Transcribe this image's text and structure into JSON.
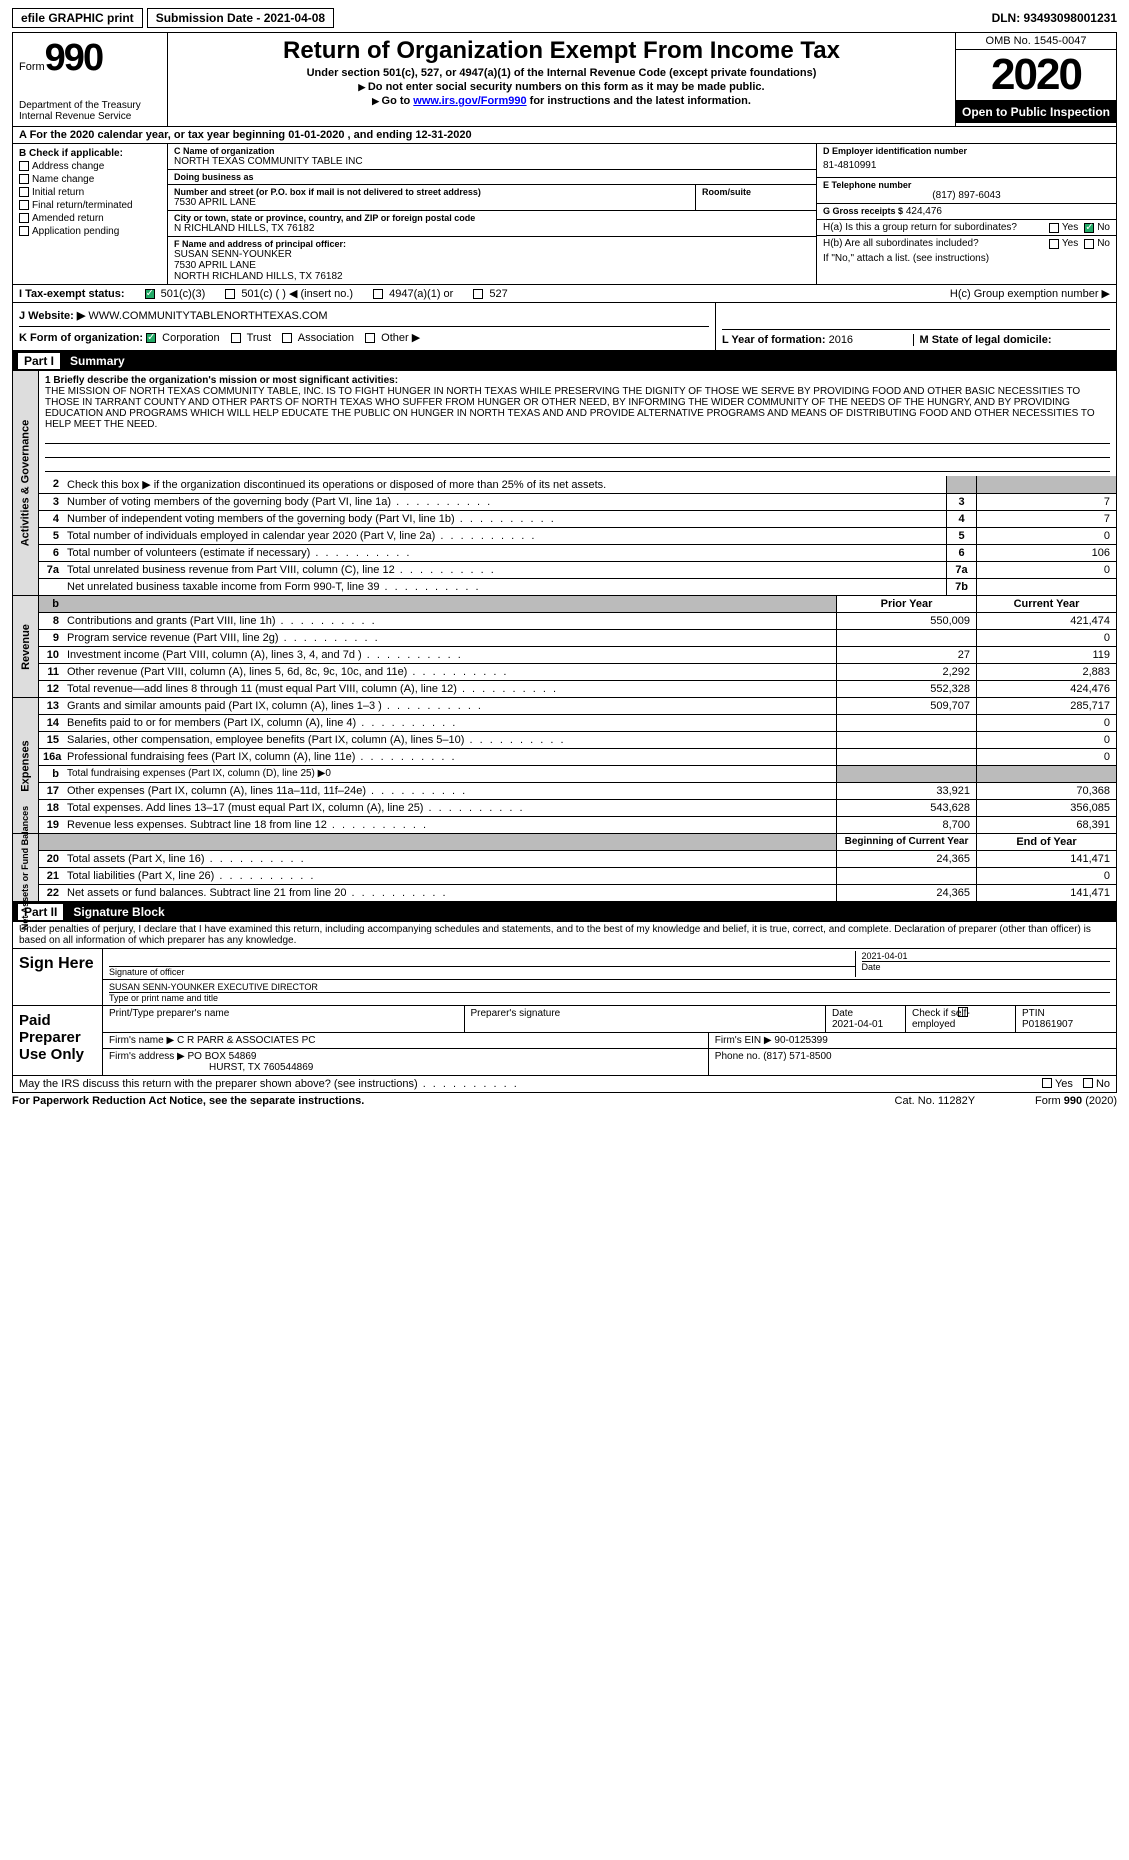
{
  "topbar": {
    "efile": "efile GRAPHIC print",
    "submission": "Submission Date - 2021-04-08",
    "dln": "DLN: 93493098001231"
  },
  "header": {
    "form_word": "Form",
    "form_num": "990",
    "title": "Return of Organization Exempt From Income Tax",
    "sub1": "Under section 501(c), 527, or 4947(a)(1) of the Internal Revenue Code (except private foundations)",
    "sub2": "Do not enter social security numbers on this form as it may be made public.",
    "sub3_pre": "Go to ",
    "sub3_link": "www.irs.gov/Form990",
    "sub3_post": " for instructions and the latest information.",
    "dept": "Department of the Treasury\nInternal Revenue Service",
    "omb": "OMB No. 1545-0047",
    "year": "2020",
    "open": "Open to Public Inspection"
  },
  "rowA": "A For the 2020 calendar year, or tax year beginning 01-01-2020   , and ending 12-31-2020",
  "colB": {
    "title": "B Check if applicable:",
    "items": [
      "Address change",
      "Name change",
      "Initial return",
      "Final return/terminated",
      "Amended return",
      "Application pending"
    ]
  },
  "C": {
    "lbl_name": "C Name of organization",
    "name": "NORTH TEXAS COMMUNITY TABLE INC",
    "dba_lbl": "Doing business as",
    "dba": "",
    "street_lbl": "Number and street (or P.O. box if mail is not delivered to street address)",
    "street": "7530 APRIL LANE",
    "room_lbl": "Room/suite",
    "room": "",
    "city_lbl": "City or town, state or province, country, and ZIP or foreign postal code",
    "city": "N RICHLAND HILLS, TX  76182"
  },
  "D": {
    "lbl": "D Employer identification number",
    "val": "81-4810991"
  },
  "E": {
    "lbl": "E Telephone number",
    "val": "(817) 897-6043"
  },
  "G": {
    "lbl": "G Gross receipts $",
    "val": "424,476"
  },
  "F": {
    "lbl": "F  Name and address of principal officer:",
    "l1": "SUSAN SENN-YOUNKER",
    "l2": "7530 APRIL LANE",
    "l3": "NORTH RICHLAND HILLS, TX  76182"
  },
  "H": {
    "a": "H(a)  Is this a group return for subordinates?",
    "b": "H(b)  Are all subordinates included?",
    "note": "If \"No,\" attach a list. (see instructions)",
    "c": "H(c)  Group exemption number ▶",
    "yes": "Yes",
    "no": "No"
  },
  "I": {
    "lbl": "I  Tax-exempt status:",
    "opts": [
      "501(c)(3)",
      "501(c) (  ) ◀ (insert no.)",
      "4947(a)(1) or",
      "527"
    ]
  },
  "J": {
    "lbl": "J  Website: ▶",
    "val": "WWW.COMMUNITYTABLENORTHTEXAS.COM"
  },
  "K": {
    "lbl": "K Form of organization:",
    "opts": [
      "Corporation",
      "Trust",
      "Association",
      "Other ▶"
    ]
  },
  "L": {
    "lbl": "L Year of formation:",
    "val": "2016"
  },
  "M": {
    "lbl": "M State of legal domicile:",
    "val": ""
  },
  "partI": {
    "name": "Part I",
    "desc": "Summary"
  },
  "mission": {
    "lbl": "1   Briefly describe the organization's mission or most significant activities:",
    "text": "THE MISSION OF NORTH TEXAS COMMUNITY TABLE, INC. IS TO FIGHT HUNGER IN NORTH TEXAS WHILE PRESERVING THE DIGNITY OF THOSE WE SERVE BY PROVIDING FOOD AND OTHER BASIC NECESSITIES TO THOSE IN TARRANT COUNTY AND OTHER PARTS OF NORTH TEXAS WHO SUFFER FROM HUNGER OR OTHER NEED, BY INFORMING THE WIDER COMMUNITY OF THE NEEDS OF THE HUNGRY, AND BY PROVIDING EDUCATION AND PROGRAMS WHICH WILL HELP EDUCATE THE PUBLIC ON HUNGER IN NORTH TEXAS AND AND PROVIDE ALTERNATIVE PROGRAMS AND MEANS OF DISTRIBUTING FOOD AND OTHER NECESSITIES TO HELP MEET THE NEED."
  },
  "gov": {
    "side": "Activities & Governance",
    "l2": "Check this box ▶  if the organization discontinued its operations or disposed of more than 25% of its net assets.",
    "rows": [
      {
        "n": "3",
        "d": "Number of voting members of the governing body (Part VI, line 1a)",
        "b": "3",
        "v": "7"
      },
      {
        "n": "4",
        "d": "Number of independent voting members of the governing body (Part VI, line 1b)",
        "b": "4",
        "v": "7"
      },
      {
        "n": "5",
        "d": "Total number of individuals employed in calendar year 2020 (Part V, line 2a)",
        "b": "5",
        "v": "0"
      },
      {
        "n": "6",
        "d": "Total number of volunteers (estimate if necessary)",
        "b": "6",
        "v": "106"
      },
      {
        "n": "7a",
        "d": "Total unrelated business revenue from Part VIII, column (C), line 12",
        "b": "7a",
        "v": "0"
      },
      {
        "n": "",
        "d": "Net unrelated business taxable income from Form 990-T, line 39",
        "b": "7b",
        "v": ""
      }
    ]
  },
  "rev": {
    "side": "Revenue",
    "hdr1": "Prior Year",
    "hdr2": "Current Year",
    "rows": [
      {
        "n": "8",
        "d": "Contributions and grants (Part VIII, line 1h)",
        "v1": "550,009",
        "v2": "421,474"
      },
      {
        "n": "9",
        "d": "Program service revenue (Part VIII, line 2g)",
        "v1": "",
        "v2": "0"
      },
      {
        "n": "10",
        "d": "Investment income (Part VIII, column (A), lines 3, 4, and 7d )",
        "v1": "27",
        "v2": "119"
      },
      {
        "n": "11",
        "d": "Other revenue (Part VIII, column (A), lines 5, 6d, 8c, 9c, 10c, and 11e)",
        "v1": "2,292",
        "v2": "2,883"
      },
      {
        "n": "12",
        "d": "Total revenue—add lines 8 through 11 (must equal Part VIII, column (A), line 12)",
        "v1": "552,328",
        "v2": "424,476"
      }
    ]
  },
  "exp": {
    "side": "Expenses",
    "rows": [
      {
        "n": "13",
        "d": "Grants and similar amounts paid (Part IX, column (A), lines 1–3 )",
        "v1": "509,707",
        "v2": "285,717"
      },
      {
        "n": "14",
        "d": "Benefits paid to or for members (Part IX, column (A), line 4)",
        "v1": "",
        "v2": "0"
      },
      {
        "n": "15",
        "d": "Salaries, other compensation, employee benefits (Part IX, column (A), lines 5–10)",
        "v1": "",
        "v2": "0"
      },
      {
        "n": "16a",
        "d": "Professional fundraising fees (Part IX, column (A), line 11e)",
        "v1": "",
        "v2": "0"
      },
      {
        "n": "b",
        "d": "Total fundraising expenses (Part IX, column (D), line 25) ▶0",
        "v1": "GREY",
        "v2": "GREY"
      },
      {
        "n": "17",
        "d": "Other expenses (Part IX, column (A), lines 11a–11d, 11f–24e)",
        "v1": "33,921",
        "v2": "70,368"
      },
      {
        "n": "18",
        "d": "Total expenses. Add lines 13–17 (must equal Part IX, column (A), line 25)",
        "v1": "543,628",
        "v2": "356,085"
      },
      {
        "n": "19",
        "d": "Revenue less expenses. Subtract line 18 from line 12",
        "v1": "8,700",
        "v2": "68,391"
      }
    ]
  },
  "net": {
    "side": "Net Assets or Fund Balances",
    "hdr1": "Beginning of Current Year",
    "hdr2": "End of Year",
    "rows": [
      {
        "n": "20",
        "d": "Total assets (Part X, line 16)",
        "v1": "24,365",
        "v2": "141,471"
      },
      {
        "n": "21",
        "d": "Total liabilities (Part X, line 26)",
        "v1": "",
        "v2": "0"
      },
      {
        "n": "22",
        "d": "Net assets or fund balances. Subtract line 21 from line 20",
        "v1": "24,365",
        "v2": "141,471"
      }
    ]
  },
  "partII": {
    "name": "Part II",
    "desc": "Signature Block"
  },
  "sig": {
    "intro": "Under penalties of perjury, I declare that I have examined this return, including accompanying schedules and statements, and to the best of my knowledge and belief, it is true, correct, and complete. Declaration of preparer (other than officer) is based on all information of which preparer has any knowledge.",
    "sign_here": "Sign Here",
    "sig_officer": "Signature of officer",
    "date": "Date",
    "date_val": "2021-04-01",
    "name_title": "SUSAN SENN-YOUNKER  EXECUTIVE DIRECTOR",
    "name_title_lbl": "Type or print name and title"
  },
  "paid": {
    "lbl": "Paid Preparer Use Only",
    "h1": "Print/Type preparer's name",
    "h2": "Preparer's signature",
    "h3": "Date",
    "h3v": "2021-04-01",
    "h4": "Check        if self-employed",
    "h5": "PTIN",
    "h5v": "P01861907",
    "firm_name_lbl": "Firm's name     ▶",
    "firm_name": "C R PARR & ASSOCIATES PC",
    "firm_ein_lbl": "Firm's EIN ▶",
    "firm_ein": "90-0125399",
    "firm_addr_lbl": "Firm's address ▶",
    "firm_addr": "PO BOX 54869",
    "firm_addr2": "HURST, TX  760544869",
    "phone_lbl": "Phone no.",
    "phone": "(817) 571-8500"
  },
  "footer": {
    "discuss": "May the IRS discuss this return with the preparer shown above? (see instructions)",
    "yes": "Yes",
    "no": "No",
    "pra": "For Paperwork Reduction Act Notice, see the separate instructions.",
    "cat": "Cat. No. 11282Y",
    "form": "Form 990 (2020)"
  }
}
